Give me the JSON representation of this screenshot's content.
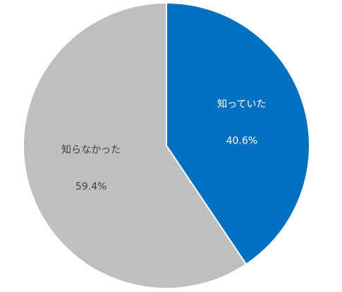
{
  "chart_data": {
    "type": "pie",
    "categories": [
      "知っていた",
      "知らなかった"
    ],
    "values": [
      40.6,
      59.4
    ],
    "value_labels": [
      "40.6%",
      "59.4%"
    ],
    "colors": [
      "#0070c0",
      "#bfbfbf"
    ],
    "label_colors": [
      "#ffffff",
      "#404040"
    ]
  }
}
